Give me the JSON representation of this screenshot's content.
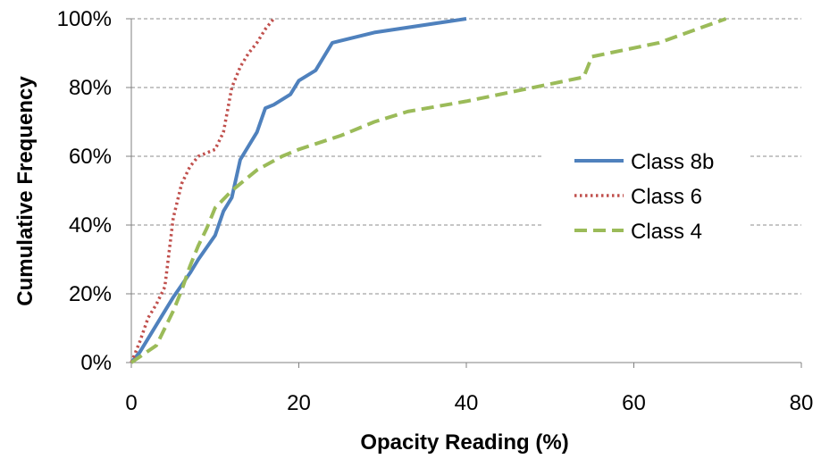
{
  "chart_data": {
    "type": "line",
    "title": "",
    "xlabel": "Opacity Reading (%)",
    "ylabel": "Cumulative Frequency",
    "xlim": [
      0,
      80
    ],
    "ylim": [
      0,
      100
    ],
    "x_ticks": [
      0,
      20,
      40,
      60,
      80
    ],
    "x_tick_labels": [
      "0",
      "20",
      "40",
      "60",
      "80"
    ],
    "y_ticks": [
      0,
      20,
      40,
      60,
      80,
      100
    ],
    "y_tick_labels": [
      "0%",
      "20%",
      "40%",
      "60%",
      "80%",
      "100%"
    ],
    "grid": "horizontal dashed",
    "legend_position": "right",
    "series": [
      {
        "name": "Class 8b",
        "color": "#4f81bd",
        "dash": "solid",
        "x": [
          0,
          1,
          2,
          4,
          5,
          7,
          8,
          10,
          11,
          12,
          13,
          14,
          15,
          16,
          17,
          19,
          20,
          22,
          24,
          29,
          40
        ],
        "y": [
          0,
          3,
          7,
          15,
          19,
          26,
          30,
          37,
          44,
          48,
          59,
          63,
          67,
          74,
          75,
          78,
          82,
          85,
          93,
          96,
          100
        ]
      },
      {
        "name": "Class 6",
        "color": "#c0504d",
        "dash": "dotted",
        "x": [
          0,
          1,
          2,
          3,
          4,
          5,
          6,
          7,
          8,
          9,
          10,
          11,
          12,
          13,
          14,
          15,
          16,
          17
        ],
        "y": [
          0,
          6,
          13,
          17,
          22,
          42,
          52,
          57,
          60,
          61,
          62,
          67,
          80,
          86,
          90,
          93,
          97,
          100
        ]
      },
      {
        "name": "Class 4",
        "color": "#9bbb59",
        "dash": "dashed",
        "x": [
          0,
          3,
          5,
          6,
          7,
          8,
          9,
          10,
          12,
          15,
          18,
          20,
          25,
          29,
          33,
          40,
          46,
          54,
          55,
          63,
          71
        ],
        "y": [
          0,
          5,
          15,
          21,
          28,
          34,
          39,
          45,
          50,
          56,
          60,
          62,
          66,
          70,
          73,
          76,
          79,
          83,
          89,
          93,
          100
        ]
      }
    ]
  }
}
